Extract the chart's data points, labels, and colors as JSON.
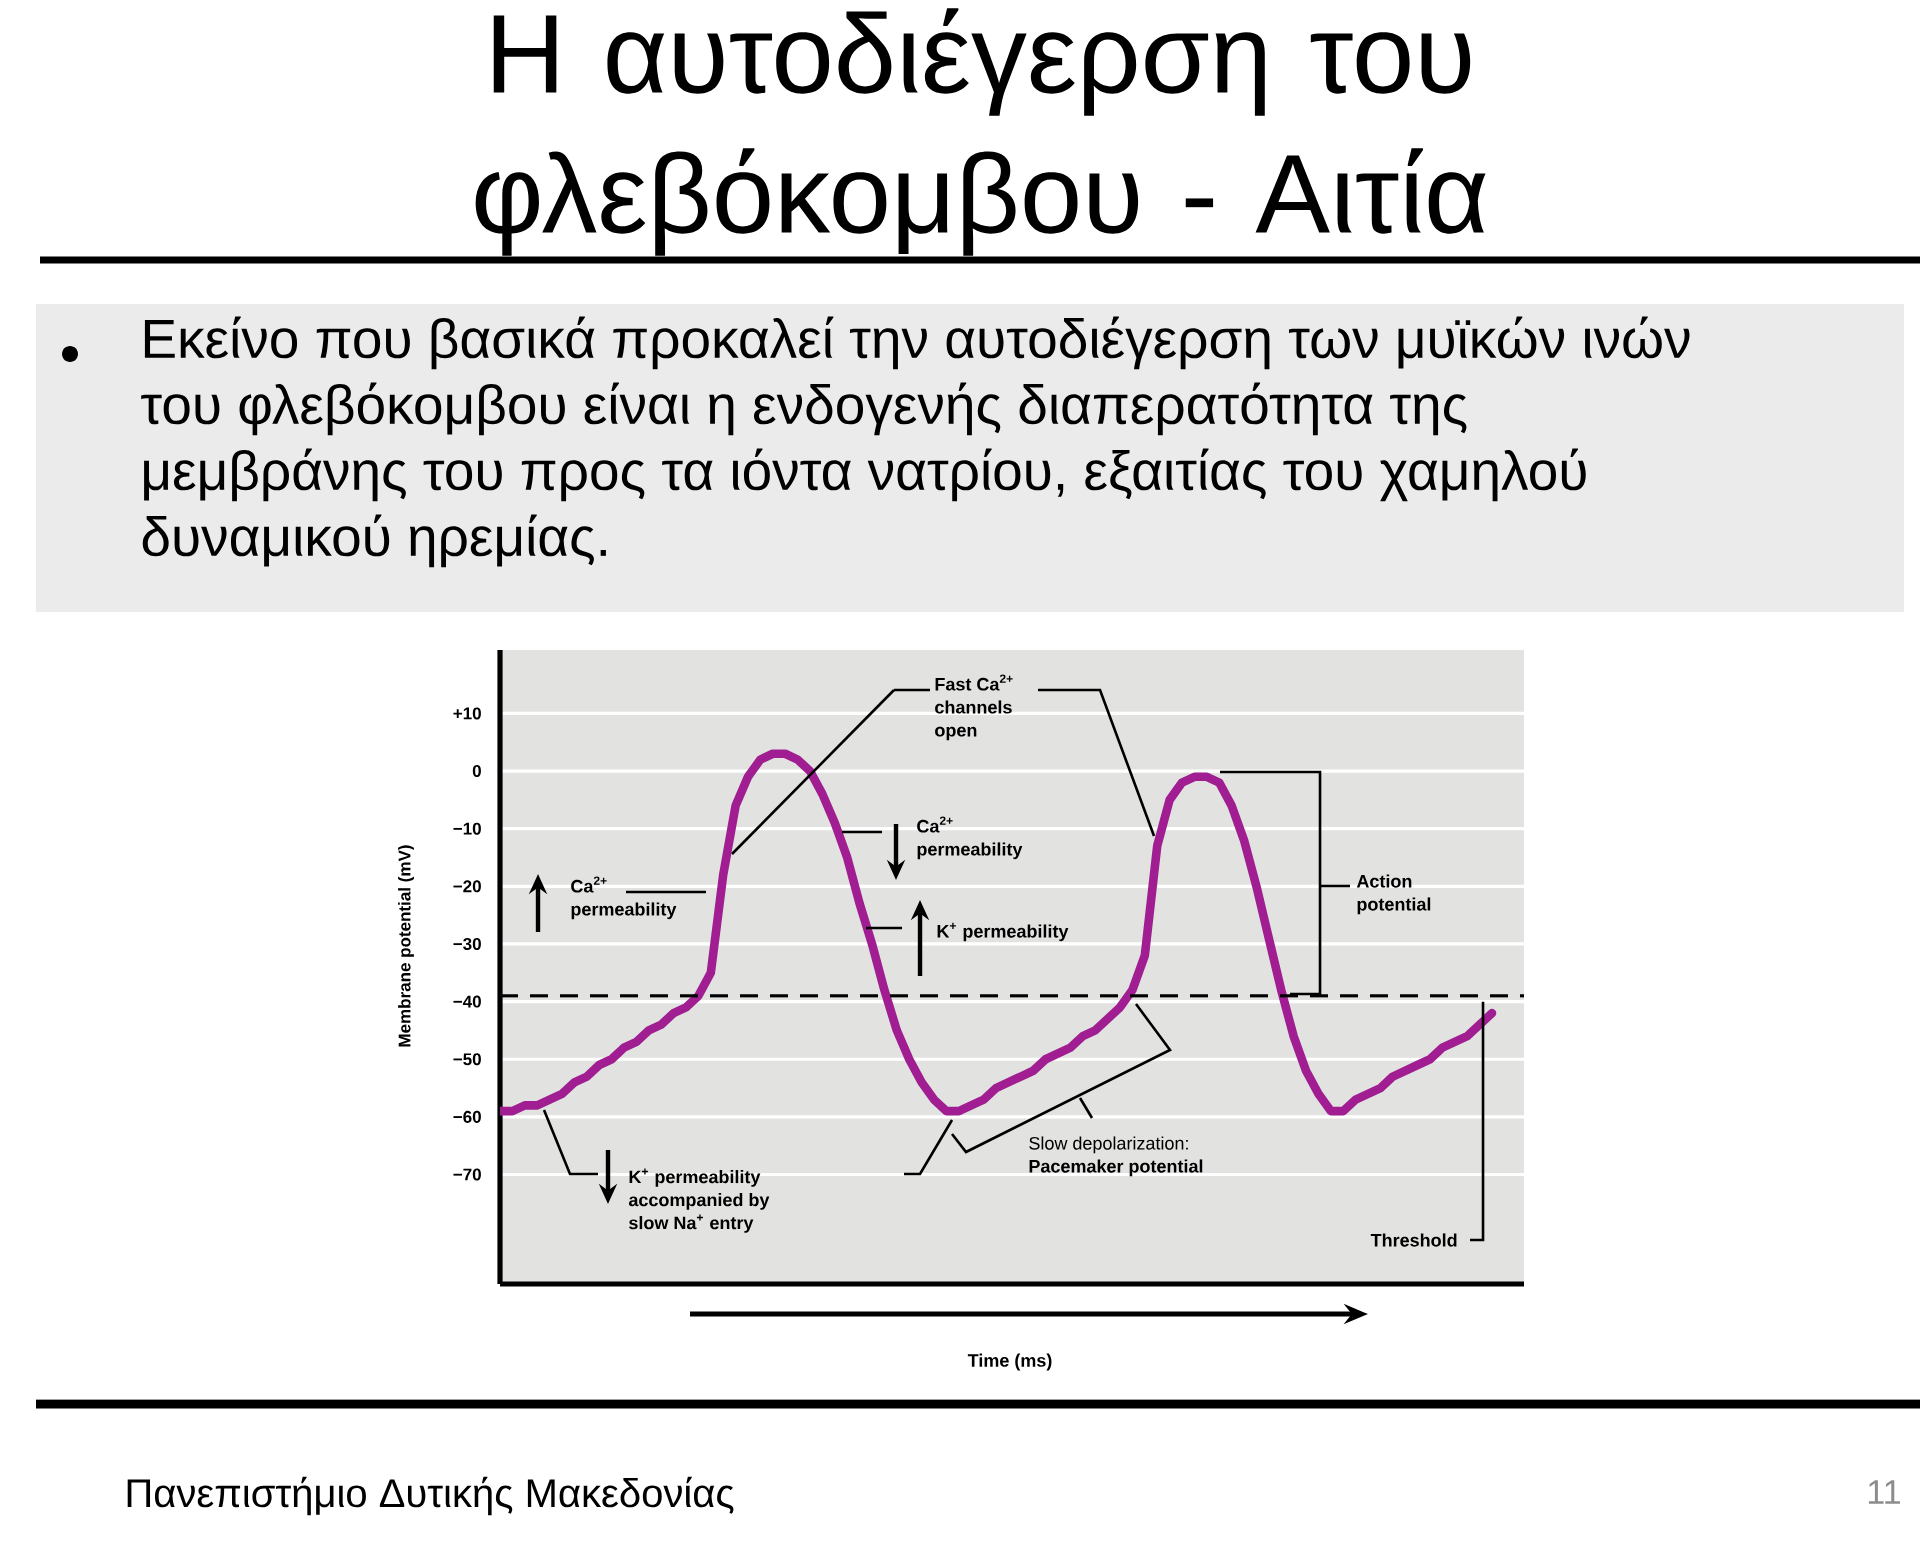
{
  "chart_data": {
    "type": "line",
    "title": "Η αυτοδιέγερση του φλεβόκομβου - Αιτία",
    "subtitle": "Εκείνο που βασικά προκαλεί την αυτοδιέγερση των μυϊκών ινών του φλεβόκομβου είναι η ενδογενής διαπερατότητα της μεμβράνης του προς τα ιόντα νατρίου, εξαιτίας του χαμηλού δυναμικού ηρεμίας.",
    "xlabel": "Time (ms)",
    "ylabel": "Membrane potential (mV)",
    "categories": [
      null,
      null,
      null,
      null,
      null,
      null,
      null,
      null,
      null,
      null,
      null,
      null,
      null,
      null,
      null,
      null,
      null,
      null,
      null,
      null,
      null,
      null,
      null,
      null,
      null,
      null,
      null,
      null,
      null,
      null,
      null,
      null,
      null,
      null,
      null,
      null,
      null,
      null,
      null,
      null,
      null,
      null,
      null,
      null,
      null,
      null,
      null,
      null,
      null,
      null,
      null,
      null,
      null,
      null,
      null,
      null,
      null,
      null,
      null,
      null,
      null,
      null,
      null,
      null,
      null,
      null,
      null,
      null,
      null,
      null,
      null,
      null,
      null,
      null,
      null,
      null,
      null,
      null,
      null,
      null,
      null
    ],
    "series": [
      {
        "color": "#a01e91",
        "values": [
          -59,
          -59,
          -58,
          -58,
          -57,
          -56,
          -54,
          -53,
          -51,
          -50,
          -48,
          -47,
          -45,
          -44,
          -42,
          -41,
          -39,
          -35,
          -18,
          -6,
          -1,
          2,
          3,
          3,
          2,
          0,
          -4,
          -9,
          -15,
          -23,
          -30,
          -38,
          -45,
          -50,
          -54,
          -57,
          -59,
          -59,
          -58,
          -57,
          -55,
          -54,
          -53,
          -52,
          -50,
          -49,
          -48,
          -46,
          -45,
          -43,
          -41,
          -38,
          -32,
          -13,
          -5,
          -2,
          -1,
          -1,
          -2,
          -6,
          -12,
          -20,
          -29,
          -38,
          -46,
          -52,
          -56,
          -59,
          -59,
          -57,
          -56,
          -55,
          -53,
          -52,
          -51,
          -50,
          -48,
          -47,
          -46,
          -44,
          -42
        ]
      }
    ],
    "ylim": [
      -89,
      21
    ],
    "yticks": [
      {
        "value": 10,
        "label": "+10"
      },
      0,
      {
        "value": -10,
        "label": "−10"
      },
      {
        "value": -20,
        "label": "−20"
      },
      {
        "value": -30,
        "label": "−30"
      },
      {
        "value": -40,
        "label": "−40"
      },
      {
        "value": -50,
        "label": "−50"
      },
      {
        "value": -60,
        "label": "−60"
      },
      {
        "value": -70,
        "label": "−70"
      }
    ],
    "grid": "y",
    "ref_lines": [
      {
        "axis": "y",
        "value": -39,
        "label": "Threshold",
        "line_style": "dashed",
        "color": "#000000"
      }
    ],
    "annotations": [
      "Fast Ca$^{2+}$ channels open",
      "Ca$^{2+}$ permeability",
      "Ca$^{2+}$ permeability",
      "K$^{+}$ permeability",
      "K$^{+}$ permeability accompanied by slow Na$^{+}$ entry",
      "Slow depolarization: **Pacemaker potential**",
      "Action potential",
      "Πανεπιστήμιο Δυτικής Μακεδονίας",
      "11"
    ]
  }
}
